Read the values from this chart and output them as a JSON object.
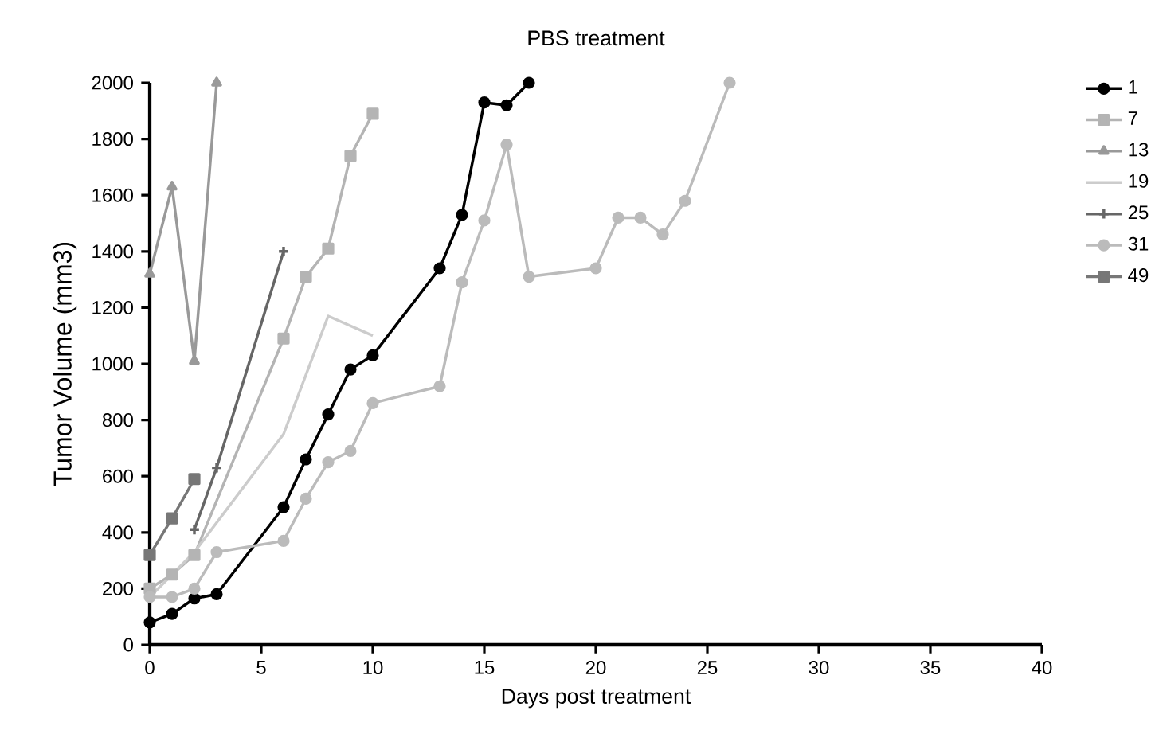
{
  "chart_data": {
    "type": "line",
    "title": "PBS treatment",
    "xlabel": "Days post treatment",
    "ylabel": "Tumor Volume (mm3)",
    "xlim": [
      0,
      40
    ],
    "xticks": [
      0,
      5,
      10,
      15,
      20,
      25,
      30,
      35,
      40
    ],
    "ylim": [
      0,
      2000
    ],
    "yticks": [
      0,
      200,
      400,
      600,
      800,
      1000,
      1200,
      1400,
      1600,
      1800,
      2000
    ],
    "legend": "right",
    "grid": false,
    "line_style": "solid",
    "series": [
      {
        "name": "1",
        "color": "#000000",
        "marker": "circle",
        "x": [
          0,
          1,
          2,
          3,
          6,
          7,
          8,
          9,
          10,
          13,
          14,
          15,
          16,
          17
        ],
        "values": [
          80,
          110,
          165,
          180,
          490,
          660,
          820,
          980,
          1030,
          1340,
          1530,
          1930,
          1920,
          2000
        ]
      },
      {
        "name": "7",
        "color": "#b4b4b4",
        "marker": "square",
        "x": [
          0,
          1,
          2,
          6,
          7,
          8,
          9,
          10
        ],
        "values": [
          200,
          250,
          320,
          1090,
          1310,
          1410,
          1740,
          1890
        ]
      },
      {
        "name": "13",
        "color": "#999999",
        "marker": "triangle",
        "x": [
          0,
          1,
          2,
          3
        ],
        "values": [
          1320,
          1630,
          1010,
          2000
        ]
      },
      {
        "name": "19",
        "color": "#cccccc",
        "marker": "none",
        "x": [
          0,
          2,
          6,
          8,
          10
        ],
        "values": [
          170,
          330,
          750,
          1170,
          1100
        ]
      },
      {
        "name": "25",
        "color": "#666666",
        "marker": "cross",
        "x": [
          2,
          3,
          6
        ],
        "values": [
          410,
          630,
          1400
        ]
      },
      {
        "name": "31",
        "color": "#bbbbbb",
        "marker": "circle",
        "x": [
          0,
          1,
          2,
          3,
          6,
          7,
          8,
          9,
          10,
          13,
          14,
          15,
          16,
          17,
          20,
          21,
          22,
          23,
          24,
          26
        ],
        "values": [
          170,
          170,
          200,
          330,
          370,
          520,
          650,
          690,
          860,
          920,
          1290,
          1510,
          1780,
          1310,
          1340,
          1520,
          1520,
          1460,
          1580,
          2000
        ]
      },
      {
        "name": "49",
        "color": "#777777",
        "marker": "square",
        "x": [
          0,
          1,
          2
        ],
        "values": [
          320,
          450,
          590
        ]
      }
    ]
  }
}
